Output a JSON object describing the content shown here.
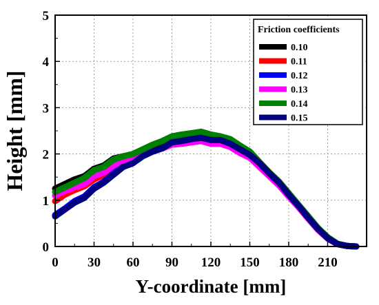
{
  "chart_data": {
    "type": "line",
    "xlabel": "Y-coordinate [mm]",
    "ylabel": "Height [mm]",
    "xlim": [
      0,
      240
    ],
    "ylim": [
      0,
      5
    ],
    "xticks": [
      "0",
      "30",
      "60",
      "90",
      "120",
      "150",
      "180",
      "210"
    ],
    "yticks": [
      "0",
      "1",
      "2",
      "3",
      "4",
      "5"
    ],
    "grid": true,
    "legend": {
      "title": "Friction coefficients",
      "position": "top-right"
    },
    "x": [
      0,
      7.5,
      15,
      22.5,
      30,
      37.5,
      45,
      52.5,
      60,
      67.5,
      75,
      82.5,
      90,
      97.5,
      105,
      112.5,
      120,
      127.5,
      135,
      142.5,
      150,
      157.5,
      165,
      172.5,
      180,
      187.5,
      195,
      202.5,
      210,
      217.5,
      225,
      232
    ],
    "series": [
      {
        "name": "0.10",
        "color": "#000000",
        "values": [
          1.25,
          1.35,
          1.45,
          1.52,
          1.68,
          1.75,
          1.9,
          1.95,
          1.98,
          2.05,
          2.15,
          2.22,
          2.35,
          2.38,
          2.42,
          2.45,
          2.38,
          2.35,
          2.3,
          2.15,
          2.05,
          1.82,
          1.6,
          1.4,
          1.15,
          0.9,
          0.65,
          0.4,
          0.2,
          0.06,
          0.01,
          0.0
        ]
      },
      {
        "name": "0.11",
        "color": "#ff0000",
        "values": [
          0.98,
          1.12,
          1.22,
          1.3,
          1.45,
          1.55,
          1.7,
          1.82,
          1.88,
          1.98,
          2.05,
          2.12,
          2.22,
          2.25,
          2.28,
          2.32,
          2.28,
          2.28,
          2.22,
          2.1,
          1.98,
          1.78,
          1.58,
          1.38,
          1.12,
          0.88,
          0.62,
          0.38,
          0.18,
          0.05,
          0.01,
          0.0
        ]
      },
      {
        "name": "0.12",
        "color": "#0000ff",
        "values": [
          0.68,
          0.82,
          0.98,
          1.08,
          1.28,
          1.4,
          1.58,
          1.75,
          1.82,
          1.95,
          2.05,
          2.12,
          2.25,
          2.28,
          2.32,
          2.36,
          2.32,
          2.3,
          2.25,
          2.12,
          2.0,
          1.8,
          1.58,
          1.38,
          1.12,
          0.88,
          0.62,
          0.38,
          0.18,
          0.05,
          0.01,
          0.0
        ]
      },
      {
        "name": "0.13",
        "color": "#ff00ff",
        "values": [
          1.1,
          1.2,
          1.28,
          1.35,
          1.52,
          1.6,
          1.75,
          1.85,
          1.9,
          1.98,
          2.05,
          2.12,
          2.2,
          2.22,
          2.25,
          2.28,
          2.22,
          2.22,
          2.15,
          2.02,
          1.92,
          1.72,
          1.52,
          1.32,
          1.08,
          0.85,
          0.6,
          0.36,
          0.17,
          0.05,
          0.01,
          0.0
        ]
      },
      {
        "name": "0.14",
        "color": "#008000",
        "values": [
          1.18,
          1.28,
          1.38,
          1.48,
          1.65,
          1.72,
          1.88,
          1.95,
          2.0,
          2.1,
          2.2,
          2.28,
          2.38,
          2.42,
          2.45,
          2.48,
          2.42,
          2.38,
          2.32,
          2.18,
          2.05,
          1.82,
          1.6,
          1.4,
          1.15,
          0.9,
          0.65,
          0.4,
          0.2,
          0.06,
          0.01,
          0.0
        ]
      },
      {
        "name": "0.15",
        "color": "#000080",
        "values": [
          0.65,
          0.8,
          0.95,
          1.05,
          1.25,
          1.38,
          1.55,
          1.72,
          1.8,
          1.95,
          2.05,
          2.12,
          2.25,
          2.28,
          2.32,
          2.35,
          2.3,
          2.3,
          2.22,
          2.1,
          1.98,
          1.8,
          1.58,
          1.38,
          1.12,
          0.88,
          0.62,
          0.38,
          0.18,
          0.05,
          0.01,
          0.0
        ]
      }
    ]
  }
}
